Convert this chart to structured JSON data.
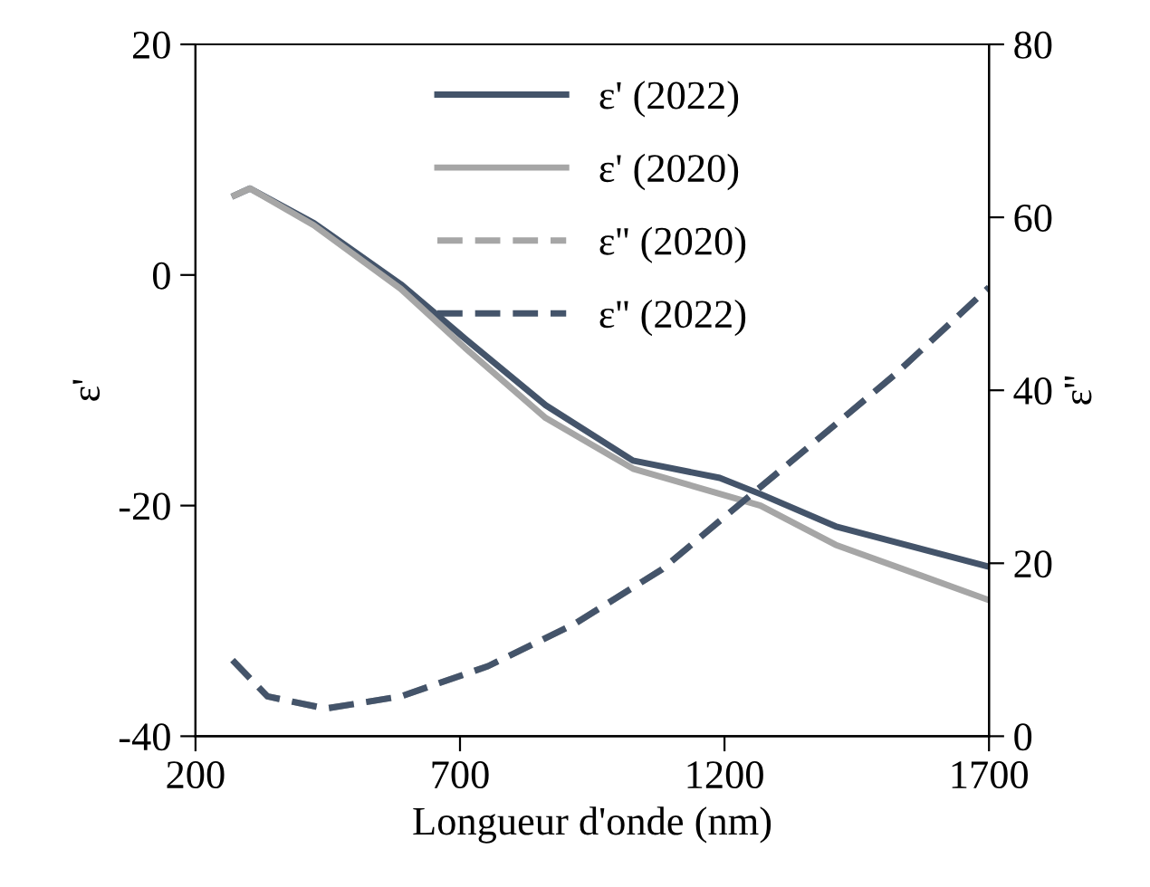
{
  "chart_data": {
    "type": "line",
    "xlabel": "Longueur d'onde (nm)",
    "ylabel": "ε'",
    "y2label": "ε''",
    "xlim": [
      200,
      1700
    ],
    "xticks": [
      200,
      700,
      1200,
      1700
    ],
    "ylim": [
      -40,
      20
    ],
    "yticks": [
      -40,
      -20,
      0,
      20
    ],
    "y2lim": [
      0,
      80
    ],
    "y2ticks": [
      0,
      20,
      40,
      60,
      80
    ],
    "grid": false,
    "legend": "top",
    "marker": "none",
    "series": [
      {
        "name": "ε' (2022)",
        "color": "#44546a",
        "line_style": "solid",
        "axis": "y",
        "x": [
          274,
          303,
          424,
          588,
          709,
          862,
          1027,
          1191,
          1268,
          1410,
          1700
        ],
        "values": [
          6.9,
          7.5,
          4.5,
          -0.8,
          -5.5,
          -11.3,
          -16.1,
          -17.6,
          -19.0,
          -21.8,
          -25.3
        ]
      },
      {
        "name": "ε' (2020)",
        "color": "#a6a6a6",
        "line_style": "solid",
        "axis": "y",
        "x": [
          274,
          303,
          424,
          588,
          709,
          862,
          1027,
          1268,
          1410,
          1700
        ],
        "values": [
          6.9,
          7.5,
          4.3,
          -1.2,
          -6.3,
          -12.4,
          -16.8,
          -20.0,
          -23.4,
          -28.2
        ]
      },
      {
        "name": "ε'' (2020)",
        "color": "#a6a6a6",
        "line_style": "dashed",
        "axis": "y2",
        "x": [
          270,
          336,
          446,
          588,
          753,
          917,
          1082,
          1191,
          1356,
          1520,
          1700
        ],
        "values": [
          8.8,
          4.6,
          3.2,
          4.6,
          8.1,
          13.0,
          19.3,
          24.9,
          33.3,
          41.7,
          51.9
        ]
      },
      {
        "name": "ε'' (2022)",
        "color": "#44546a",
        "line_style": "dashed",
        "axis": "y2",
        "x": [
          270,
          336,
          446,
          588,
          753,
          917,
          1082,
          1191,
          1356,
          1520,
          1700
        ],
        "values": [
          8.8,
          4.6,
          3.2,
          4.6,
          8.1,
          13.0,
          19.3,
          24.9,
          33.3,
          41.7,
          51.9
        ]
      }
    ]
  }
}
